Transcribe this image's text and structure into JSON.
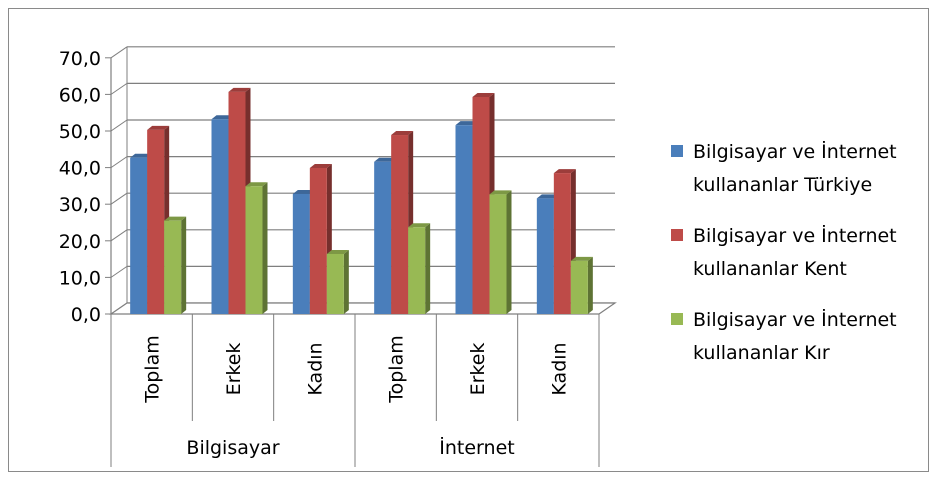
{
  "chart_data": {
    "type": "bar",
    "style": "3d-clustered-column",
    "title": "",
    "xlabel": "",
    "ylabel": "",
    "ylim": [
      0,
      70
    ],
    "yticks": [
      "0,0",
      "10,0",
      "20,0",
      "30,0",
      "40,0",
      "50,0",
      "60,0",
      "70,0"
    ],
    "grid": true,
    "legend_position": "right",
    "groups": [
      {
        "label": "Bilgisayar",
        "categories": [
          "Toplam",
          "Erkek",
          "Kadın"
        ]
      },
      {
        "label": "İnternet",
        "categories": [
          "Toplam",
          "Erkek",
          "Kadın"
        ]
      }
    ],
    "series": [
      {
        "name_lines": [
          "Bilgisayar ve İnternet",
          "kullananlar Türkiye"
        ],
        "color": "#4a7ebb",
        "values": [
          42.7,
          53.2,
          32.8,
          41.6,
          51.6,
          31.6
        ]
      },
      {
        "name_lines": [
          "Bilgisayar ve İnternet",
          "kullananlar Kent"
        ],
        "color": "#be4b48",
        "values": [
          50.3,
          60.7,
          39.9,
          48.9,
          59.3,
          38.5
        ]
      },
      {
        "name_lines": [
          "Bilgisayar ve İnternet",
          "kullananlar Kır"
        ],
        "color": "#98b954",
        "values": [
          25.5,
          34.9,
          16.4,
          23.7,
          32.7,
          14.5
        ]
      }
    ]
  }
}
